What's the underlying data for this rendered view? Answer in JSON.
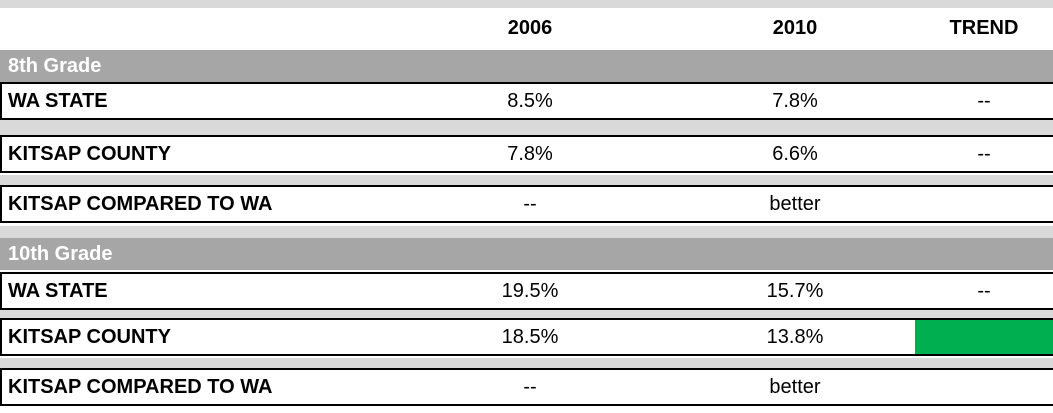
{
  "table": {
    "columns": [
      "2006",
      "2010",
      "TREND"
    ],
    "sections": [
      {
        "title": "8th Grade",
        "rows": [
          {
            "label": "WA STATE",
            "cells": [
              "8.5%",
              "7.8%",
              "--"
            ]
          },
          {
            "label": "KITSAP COUNTY",
            "cells": [
              "7.8%",
              "6.6%",
              "--"
            ]
          },
          {
            "label": "KITSAP COMPARED TO WA",
            "cells": [
              "--",
              "better",
              null
            ]
          }
        ]
      },
      {
        "title": "10th Grade",
        "rows": [
          {
            "label": "WA STATE",
            "cells": [
              "19.5%",
              "15.7%",
              "--"
            ]
          },
          {
            "label": "KITSAP COUNTY",
            "cells": [
              "18.5%",
              "13.8%",
              null
            ],
            "trend_color": "#00b050"
          },
          {
            "label": "KITSAP COMPARED TO WA",
            "cells": [
              "--",
              "better",
              null
            ]
          }
        ]
      }
    ]
  }
}
